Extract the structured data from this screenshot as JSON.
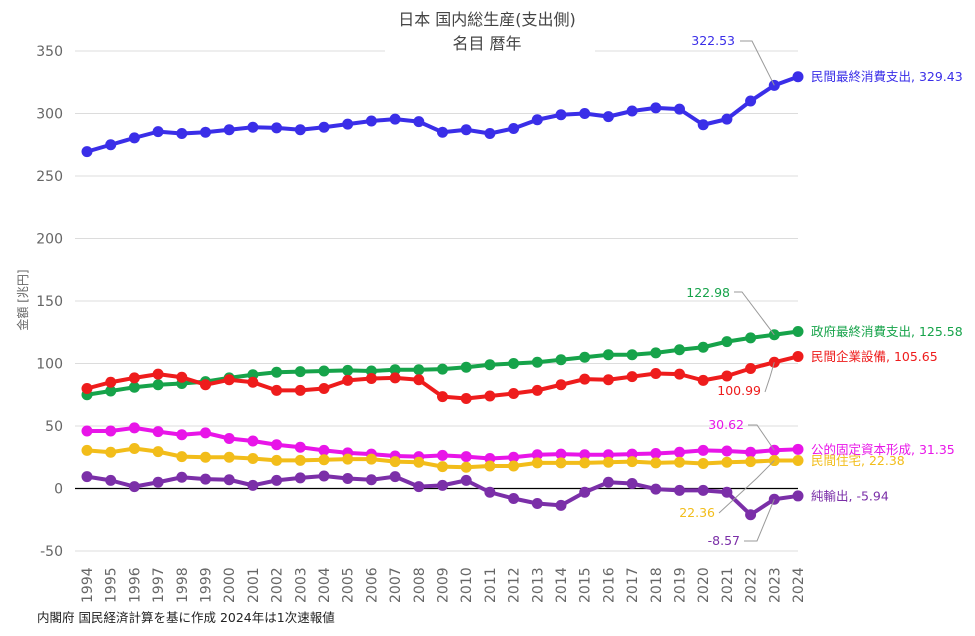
{
  "chart_data": {
    "type": "line",
    "title": "日本 国内総生産(支出側)",
    "subtitle": "名目 暦年",
    "ylabel": "金額 [兆円]",
    "xlabel": "",
    "ylim": [
      -50,
      350
    ],
    "yticks": [
      -50,
      0,
      50,
      100,
      150,
      200,
      250,
      300,
      350
    ],
    "grid": true,
    "legend": "none",
    "footnote": "内閣府 国民経済計算を基に作成 2024年は1次速報値",
    "x": [
      "1994",
      "1995",
      "1996",
      "1997",
      "1998",
      "1999",
      "2000",
      "2001",
      "2002",
      "2003",
      "2004",
      "2005",
      "2006",
      "2007",
      "2008",
      "2009",
      "2010",
      "2011",
      "2012",
      "2013",
      "2014",
      "2015",
      "2016",
      "2017",
      "2018",
      "2019",
      "2020",
      "2021",
      "2022",
      "2023",
      "2024"
    ],
    "series": [
      {
        "name": "民間最終消費支出",
        "color": "#3a2ee8",
        "end_label": "民間最終消費支出, 329.43",
        "point_label": "322.53",
        "point_label_index": 29,
        "point_label_color": "#3a2ee8",
        "values": [
          269.5,
          275,
          280.5,
          285.5,
          284,
          285,
          287,
          289,
          288.5,
          287,
          289,
          291.5,
          294,
          295.5,
          293.5,
          285,
          287,
          284,
          288,
          295,
          299,
          300,
          297.5,
          302,
          304.5,
          303.5,
          291,
          295.5,
          310,
          322.53,
          329.43
        ]
      },
      {
        "name": "政府最終消費支出",
        "color": "#16a34a",
        "end_label": "政府最終消費支出, 125.58",
        "point_label": "122.98",
        "point_label_index": 29,
        "point_label_color": "#16a34a",
        "values": [
          75,
          78,
          81,
          83,
          84,
          85.5,
          88.5,
          91,
          93,
          93.5,
          94,
          94.5,
          94,
          95,
          95,
          95.5,
          97,
          99,
          100,
          101,
          103,
          105,
          107,
          107,
          108.5,
          111,
          113,
          117.5,
          120.5,
          122.98,
          125.58
        ]
      },
      {
        "name": "民間企業設備",
        "color": "#ee1c1c",
        "end_label": "民間企業設備, 105.65",
        "point_label": "100.99",
        "point_label_index": 29,
        "point_label_color": "#ee1c1c",
        "values": [
          80,
          85,
          88.5,
          91.5,
          89,
          83,
          87,
          85,
          78.5,
          78.5,
          80,
          86.5,
          88,
          88.5,
          87,
          73.5,
          72,
          74,
          76,
          78.5,
          83,
          87.5,
          87,
          89.5,
          92,
          91.5,
          86.5,
          90,
          96,
          100.99,
          105.65
        ]
      },
      {
        "name": "公的固定資本形成",
        "color": "#e815e8",
        "end_label": "公的固定資本形成, 31.35",
        "point_label": "30.62",
        "point_label_index": 29,
        "point_label_color": "#e815e8",
        "values": [
          46,
          46,
          48.5,
          45.5,
          43,
          44.5,
          40,
          38,
          35,
          33,
          30.5,
          28.5,
          27.5,
          26,
          25.5,
          26.5,
          25.5,
          24,
          25,
          27,
          27.5,
          27,
          27,
          27.5,
          28,
          29,
          30.5,
          30,
          29,
          30.62,
          31.35
        ]
      },
      {
        "name": "民間住宅",
        "color": "#f2bd1a",
        "end_label": "民間住宅, 22.38",
        "point_label": "22.36",
        "point_label_index": 29,
        "point_label_color": "#f2bd1a",
        "values": [
          30.5,
          29,
          32,
          29.5,
          25.5,
          25,
          25,
          24,
          22.5,
          22.5,
          23,
          23.5,
          23.5,
          21.5,
          21,
          17.5,
          17,
          18,
          18,
          20.5,
          20.5,
          20.5,
          21,
          21.5,
          20.5,
          21,
          20,
          21,
          21.5,
          22.36,
          22.38
        ]
      },
      {
        "name": "純輸出",
        "color": "#7b2fa8",
        "end_label": "純輸出, -5.94",
        "point_label": "-8.57",
        "point_label_index": 29,
        "point_label_color": "#7b2fa8",
        "values": [
          9.5,
          6.5,
          1.5,
          5,
          9,
          7.5,
          7,
          2.5,
          6.5,
          8.5,
          10,
          8,
          7,
          9.5,
          1.5,
          2.5,
          6.5,
          -3,
          -8,
          -12,
          -13.5,
          -3,
          5,
          4,
          -0.5,
          -1.5,
          -1.5,
          -3,
          -21,
          -8.57,
          -5.94
        ]
      }
    ]
  }
}
